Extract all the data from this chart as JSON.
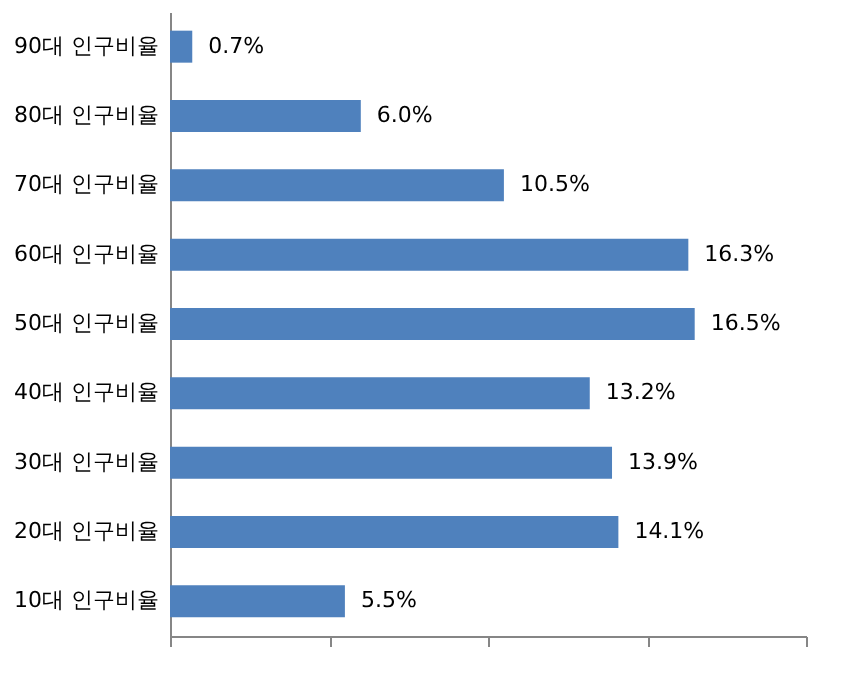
{
  "chart_data": {
    "type": "bar",
    "orientation": "horizontal",
    "categories": [
      "90대 인구비율",
      "80대 인구비율",
      "70대 인구비율",
      "60대 인구비율",
      "50대 인구비율",
      "40대 인구비율",
      "30대 인구비율",
      "20대 인구비율",
      "10대 인구비율"
    ],
    "values": [
      0.7,
      6.0,
      10.5,
      16.3,
      16.5,
      13.2,
      13.9,
      14.1,
      5.5
    ],
    "value_labels": [
      "0.7%",
      "6.0%",
      "10.5%",
      "16.3%",
      "16.5%",
      "13.2%",
      "13.9%",
      "14.1%",
      "5.5%"
    ],
    "color": "#4f81bd",
    "xlim": [
      0,
      20
    ],
    "xticks": [
      {
        "value": 0,
        "label": null
      },
      {
        "value": 5,
        "label": null
      },
      {
        "value": 10,
        "label": null
      },
      {
        "value": 15,
        "label": null
      },
      {
        "value": 20,
        "label": null
      }
    ],
    "tick_labels": "y",
    "grid": false
  }
}
